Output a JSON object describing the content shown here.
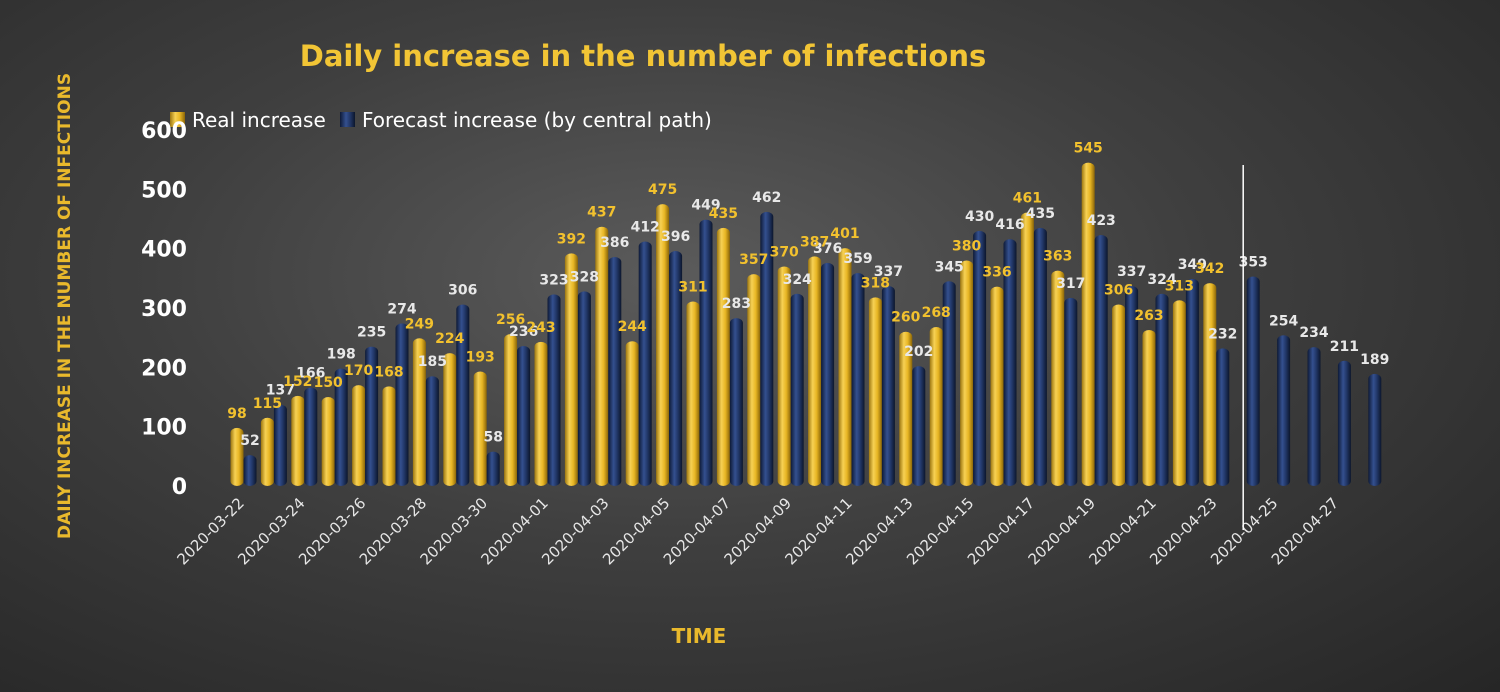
{
  "chart_data": {
    "type": "bar",
    "title": "Daily increase in the number of infections",
    "xlabel": "TIME",
    "ylabel": "DAILY INCREASE IN THE NUMBER OF INFECTIONS",
    "ylim": [
      0,
      600
    ],
    "yticks": [
      0,
      100,
      200,
      300,
      400,
      500,
      600
    ],
    "legend_position": "top-left",
    "categories": [
      "2020-03-22",
      "2020-03-23",
      "2020-03-24",
      "2020-03-25",
      "2020-03-26",
      "2020-03-27",
      "2020-03-28",
      "2020-03-29",
      "2020-03-30",
      "2020-03-31",
      "2020-04-01",
      "2020-04-02",
      "2020-04-03",
      "2020-04-04",
      "2020-04-05",
      "2020-04-06",
      "2020-04-07",
      "2020-04-08",
      "2020-04-09",
      "2020-04-10",
      "2020-04-11",
      "2020-04-12",
      "2020-04-13",
      "2020-04-14",
      "2020-04-15",
      "2020-04-16",
      "2020-04-17",
      "2020-04-18",
      "2020-04-19",
      "2020-04-20",
      "2020-04-21",
      "2020-04-22",
      "2020-04-23",
      "2020-04-24",
      "2020-04-25",
      "2020-04-26",
      "2020-04-27",
      "2020-04-28"
    ],
    "x_tick_labels": [
      "2020-03-22",
      "2020-03-24",
      "2020-03-26",
      "2020-03-28",
      "2020-03-30",
      "2020-04-01",
      "2020-04-03",
      "2020-04-05",
      "2020-04-07",
      "2020-04-09",
      "2020-04-11",
      "2020-04-13",
      "2020-04-15",
      "2020-04-17",
      "2020-04-19",
      "2020-04-21",
      "2020-04-23",
      "2020-04-25",
      "2020-04-27"
    ],
    "series": [
      {
        "name": "Real increase",
        "color": "#e8b624",
        "values": [
          98,
          115,
          152,
          150,
          170,
          168,
          249,
          224,
          193,
          256,
          243,
          392,
          437,
          244,
          475,
          311,
          435,
          357,
          370,
          387,
          401,
          318,
          260,
          268,
          380,
          336,
          461,
          363,
          545,
          306,
          263,
          313,
          342,
          null,
          null,
          null,
          null,
          null
        ]
      },
      {
        "name": "Forecast increase (by central path)",
        "color": "#1f3566",
        "values": [
          52,
          137,
          166,
          198,
          235,
          274,
          185,
          306,
          58,
          236,
          323,
          328,
          386,
          412,
          396,
          449,
          283,
          462,
          324,
          376,
          359,
          337,
          202,
          345,
          430,
          416,
          435,
          317,
          423,
          337,
          324,
          349,
          232,
          353,
          254,
          234,
          211,
          189
        ]
      }
    ],
    "divider_after_category": "2020-04-24"
  }
}
